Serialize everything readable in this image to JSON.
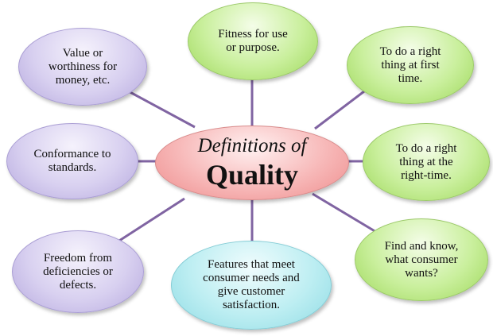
{
  "center": {
    "line1": "Definitions of",
    "line2": "Quality"
  },
  "nodes": {
    "fitness": "Fitness for use\nor purpose.",
    "value": "Value or\nworthiness for\nmoney, etc.",
    "right_first": "To do a right\nthing at first\ntime.",
    "conformance": "Conformance to\nstandards.",
    "right_time": "To do a right\nthing at the\nright-time.",
    "freedom": "Freedom from\ndeficiencies or\ndefects.",
    "features": "Features that meet\nconsumer needs and\ngive customer\nsatisfaction.",
    "find_know": "Find and know,\nwhat consumer\nwants?"
  },
  "colors": {
    "connector": "#8064a2",
    "green": "#9ed85a",
    "purple": "#b6a9de",
    "cyan": "#8fdbe4",
    "center": "#ee8c8c"
  }
}
